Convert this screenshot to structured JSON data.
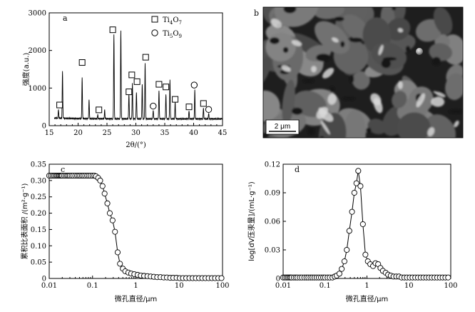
{
  "chart_data": [
    {
      "panel": "a",
      "type": "line",
      "xlabel": "2θ/(°)",
      "ylabel": "强度(a.u.)",
      "xlim": [
        15,
        45
      ],
      "ylim": [
        0,
        3000
      ],
      "xticks": [
        "15",
        "20",
        "25",
        "30",
        "35",
        "40",
        "45"
      ],
      "yticks": [
        "0",
        "1000",
        "2000",
        "3000"
      ],
      "legend": [
        {
          "marker": "square",
          "label": "Ti4O7"
        },
        {
          "marker": "circle",
          "label": "Ti5O9"
        }
      ],
      "peaks": [
        {
          "x": 16.6,
          "y": 380,
          "phase": "Ti4O7"
        },
        {
          "x": 17.3,
          "y": 1400,
          "phase": "none"
        },
        {
          "x": 20.7,
          "y": 1230,
          "phase": "Ti4O7"
        },
        {
          "x": 21.9,
          "y": 650,
          "phase": "none"
        },
        {
          "x": 23.4,
          "y": 260,
          "phase": "Ti4O7"
        },
        {
          "x": 24.6,
          "y": 380,
          "phase": "none"
        },
        {
          "x": 26.2,
          "y": 2420,
          "phase": "Ti4O7"
        },
        {
          "x": 27.4,
          "y": 2530,
          "phase": "none"
        },
        {
          "x": 28.8,
          "y": 820,
          "phase": "Ti4O7"
        },
        {
          "x": 29.4,
          "y": 1100,
          "phase": "Ti4O7"
        },
        {
          "x": 30.1,
          "y": 880,
          "phase": "Ti4O7"
        },
        {
          "x": 31.1,
          "y": 1070,
          "phase": "none"
        },
        {
          "x": 31.6,
          "y": 1630,
          "phase": "Ti4O7"
        },
        {
          "x": 33.0,
          "y": 400,
          "phase": "Ti5O9"
        },
        {
          "x": 34.0,
          "y": 930,
          "phase": "Ti4O7"
        },
        {
          "x": 35.2,
          "y": 830,
          "phase": "Ti4O7"
        },
        {
          "x": 35.9,
          "y": 1200,
          "phase": "none"
        },
        {
          "x": 36.8,
          "y": 600,
          "phase": "Ti4O7"
        },
        {
          "x": 39.2,
          "y": 370,
          "phase": "Ti4O7"
        },
        {
          "x": 40.2,
          "y": 920,
          "phase": "Ti5O9"
        },
        {
          "x": 41.7,
          "y": 450,
          "phase": "Ti4O7"
        },
        {
          "x": 42.6,
          "y": 300,
          "phase": "Ti5O9"
        }
      ],
      "markers": [
        {
          "x": 16.8,
          "y": 550,
          "shape": "square"
        },
        {
          "x": 20.7,
          "y": 1680,
          "shape": "square"
        },
        {
          "x": 23.6,
          "y": 420,
          "shape": "square"
        },
        {
          "x": 26.0,
          "y": 2550,
          "shape": "square"
        },
        {
          "x": 28.8,
          "y": 900,
          "shape": "square"
        },
        {
          "x": 29.3,
          "y": 1350,
          "shape": "square"
        },
        {
          "x": 30.2,
          "y": 1170,
          "shape": "square"
        },
        {
          "x": 31.7,
          "y": 1820,
          "shape": "square"
        },
        {
          "x": 33.0,
          "y": 520,
          "shape": "circle"
        },
        {
          "x": 34.0,
          "y": 1100,
          "shape": "square"
        },
        {
          "x": 35.2,
          "y": 1030,
          "shape": "square"
        },
        {
          "x": 36.8,
          "y": 700,
          "shape": "square"
        },
        {
          "x": 39.2,
          "y": 500,
          "shape": "square"
        },
        {
          "x": 40.1,
          "y": 1080,
          "shape": "circle"
        },
        {
          "x": 41.7,
          "y": 590,
          "shape": "square"
        },
        {
          "x": 42.6,
          "y": 430,
          "shape": "circle"
        }
      ]
    },
    {
      "panel": "c",
      "type": "line",
      "xlabel": "微孔直径/μm",
      "ylabel": "累积比表面积 /(m²·g⁻¹)",
      "xscale": "log",
      "xlim": [
        0.01,
        100
      ],
      "ylim": [
        0,
        0.35
      ],
      "xticks": [
        "0.01",
        "0.1",
        "1",
        "10",
        "100"
      ],
      "yticks": [
        "0",
        "0.05",
        "0.10",
        "0.15",
        "0.20",
        "0.25",
        "0.30",
        "0.35"
      ],
      "points": {
        "x": [
          0.01,
          0.011,
          0.012,
          0.013,
          0.014,
          0.015,
          0.016,
          0.017,
          0.018,
          0.019,
          0.02,
          0.022,
          0.024,
          0.026,
          0.028,
          0.03,
          0.033,
          0.036,
          0.04,
          0.044,
          0.048,
          0.052,
          0.057,
          0.062,
          0.068,
          0.075,
          0.082,
          0.09,
          0.1,
          0.11,
          0.12,
          0.135,
          0.15,
          0.17,
          0.19,
          0.22,
          0.25,
          0.29,
          0.33,
          0.38,
          0.43,
          0.5,
          0.57,
          0.67,
          0.78,
          0.92,
          1.1,
          1.3,
          1.55,
          1.85,
          2.2,
          2.6,
          3.1,
          3.7,
          4.4,
          5.2,
          6.2,
          7.3,
          8.7,
          10.3,
          12.2,
          14.5,
          17.2,
          20.4,
          24.2,
          28.7,
          34.0,
          40.3,
          47.8,
          56.7,
          67.2,
          79.7,
          94.5
        ],
        "y": [
          0.315,
          0.315,
          0.315,
          0.315,
          0.315,
          0.315,
          0.315,
          0.315,
          0.315,
          0.315,
          0.315,
          0.315,
          0.315,
          0.315,
          0.315,
          0.315,
          0.315,
          0.315,
          0.315,
          0.315,
          0.315,
          0.315,
          0.315,
          0.315,
          0.315,
          0.315,
          0.315,
          0.315,
          0.315,
          0.315,
          0.313,
          0.308,
          0.3,
          0.283,
          0.26,
          0.23,
          0.2,
          0.178,
          0.143,
          0.08,
          0.045,
          0.03,
          0.022,
          0.018,
          0.015,
          0.013,
          0.011,
          0.009,
          0.008,
          0.007,
          0.006,
          0.005,
          0.004,
          0.004,
          0.003,
          0.003,
          0.002,
          0.002,
          0.002,
          0.001,
          0.001,
          0.001,
          0.001,
          0.001,
          0.001,
          0.001,
          0.001,
          0.001,
          0.001,
          0.001,
          0.001,
          0.001,
          0.001
        ]
      }
    },
    {
      "panel": "d",
      "type": "line",
      "xlabel": "微孔直径/μm",
      "ylabel": "log[dV压汞量]/(mL·g⁻¹)",
      "xscale": "log",
      "xlim": [
        0.01,
        100
      ],
      "ylim": [
        0,
        0.12
      ],
      "xticks": [
        "0.01",
        "0.1",
        "1",
        "10",
        "100"
      ],
      "yticks": [
        "0",
        "0.03",
        "0.06",
        "0.09",
        "0.12"
      ],
      "points": {
        "x": [
          0.01,
          0.011,
          0.012,
          0.013,
          0.014,
          0.015,
          0.016,
          0.018,
          0.02,
          0.022,
          0.025,
          0.028,
          0.032,
          0.036,
          0.04,
          0.045,
          0.05,
          0.056,
          0.063,
          0.071,
          0.08,
          0.09,
          0.1,
          0.115,
          0.13,
          0.15,
          0.17,
          0.19,
          0.22,
          0.25,
          0.29,
          0.33,
          0.38,
          0.44,
          0.5,
          0.56,
          0.62,
          0.7,
          0.8,
          0.92,
          1.05,
          1.2,
          1.4,
          1.6,
          1.85,
          2.1,
          2.4,
          2.8,
          3.2,
          3.7,
          4.3,
          5.0,
          5.8,
          6.7,
          7.8,
          9.0,
          10.5,
          12.2,
          14.2,
          16.5,
          19.2,
          22.3,
          26.0,
          30.2,
          35.1,
          40.8,
          47.4,
          55.1,
          64.0,
          74.4,
          86.5
        ],
        "y": [
          0.001,
          0.001,
          0.001,
          0.001,
          0.001,
          0.001,
          0.001,
          0.001,
          0.001,
          0.001,
          0.001,
          0.001,
          0.001,
          0.001,
          0.001,
          0.001,
          0.001,
          0.001,
          0.001,
          0.001,
          0.001,
          0.001,
          0.001,
          0.001,
          0.001,
          0.001,
          0.002,
          0.003,
          0.005,
          0.01,
          0.018,
          0.03,
          0.05,
          0.07,
          0.09,
          0.1,
          0.113,
          0.097,
          0.057,
          0.025,
          0.018,
          0.015,
          0.013,
          0.016,
          0.015,
          0.011,
          0.008,
          0.006,
          0.004,
          0.003,
          0.002,
          0.002,
          0.002,
          0.001,
          0.001,
          0.001,
          0.001,
          0.001,
          0.001,
          0.001,
          0.001,
          0.001,
          0.001,
          0.001,
          0.001,
          0.001,
          0.001,
          0.001,
          0.001,
          0.001,
          0.001
        ]
      }
    }
  ],
  "panel_b": {
    "label": "b",
    "scale_bar": "2 μm"
  }
}
